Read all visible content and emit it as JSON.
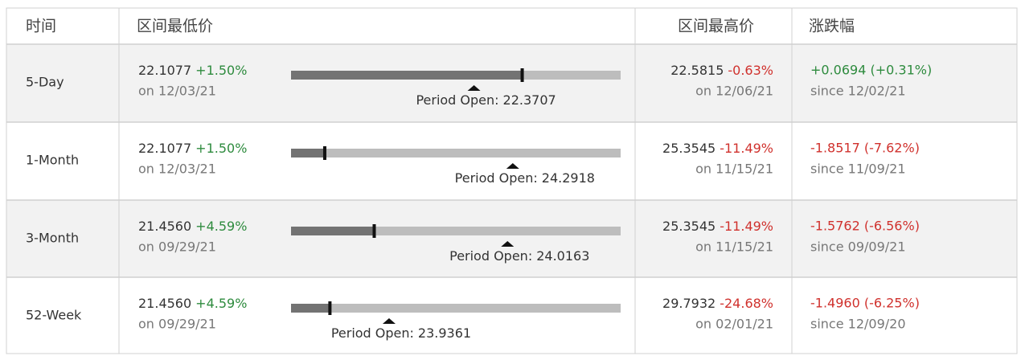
{
  "header": {
    "period": "时间",
    "low": "区间最低价",
    "high": "区间最高价",
    "change": "涨跌幅"
  },
  "open_label": "Period Open:",
  "last_price": 22.44,
  "rows": [
    {
      "period": "5-Day",
      "low": 22.1077,
      "low_pct": "+1.50%",
      "low_date": "on 12/03/21",
      "open": 22.3707,
      "high": 22.5815,
      "high_pct": "-0.63%",
      "high_date": "on 12/06/21",
      "change": "+0.0694 (+0.31%)",
      "since": "since 12/02/21"
    },
    {
      "period": "1-Month",
      "low": 22.1077,
      "low_pct": "+1.50%",
      "low_date": "on 12/03/21",
      "open": 24.2918,
      "high": 25.3545,
      "high_pct": "-11.49%",
      "high_date": "on 11/15/21",
      "change": "-1.8517 (-7.62%)",
      "since": "since 11/09/21"
    },
    {
      "period": "3-Month",
      "low": 21.456,
      "low_pct": "+4.59%",
      "low_date": "on 09/29/21",
      "open": 24.0163,
      "high": 25.3545,
      "high_pct": "-11.49%",
      "high_date": "on 11/15/21",
      "change": "-1.5762 (-6.56%)",
      "since": "since 09/09/21"
    },
    {
      "period": "52-Week",
      "low": 21.456,
      "low_pct": "+4.59%",
      "low_date": "on 09/29/21",
      "open": 23.9361,
      "high": 29.7932,
      "high_pct": "-24.68%",
      "high_date": "on 02/01/21",
      "change": "-1.4960 (-6.25%)",
      "since": "since 12/09/20"
    }
  ]
}
